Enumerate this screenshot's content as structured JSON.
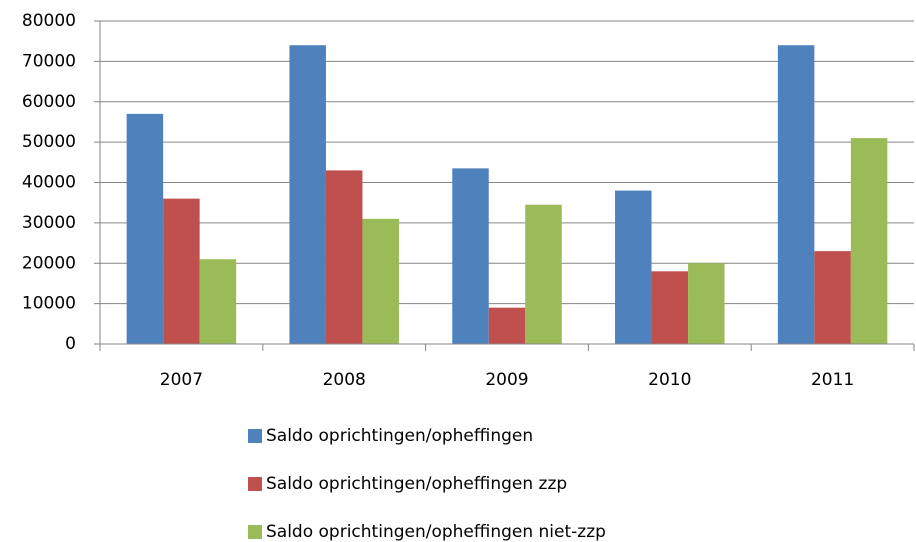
{
  "chart_data": {
    "type": "bar",
    "categories": [
      "2007",
      "2008",
      "2009",
      "2010",
      "2011"
    ],
    "series": [
      {
        "name": "Saldo oprichtingen/opheffingen",
        "color": "#4f81bd",
        "values": [
          57000,
          74000,
          43500,
          38000,
          74000
        ]
      },
      {
        "name": "Saldo oprichtingen/opheffingen zzp",
        "color": "#c0504d",
        "values": [
          36000,
          43000,
          9000,
          18000,
          23000
        ]
      },
      {
        "name": "Saldo oprichtingen/opheffingen niet-zzp",
        "color": "#9bbb59",
        "values": [
          21000,
          31000,
          34500,
          20000,
          51000
        ]
      }
    ],
    "ylim": [
      0,
      80000
    ],
    "yticks": [
      0,
      10000,
      20000,
      30000,
      40000,
      50000,
      60000,
      70000,
      80000
    ],
    "grid": true,
    "legend": "bottom"
  }
}
